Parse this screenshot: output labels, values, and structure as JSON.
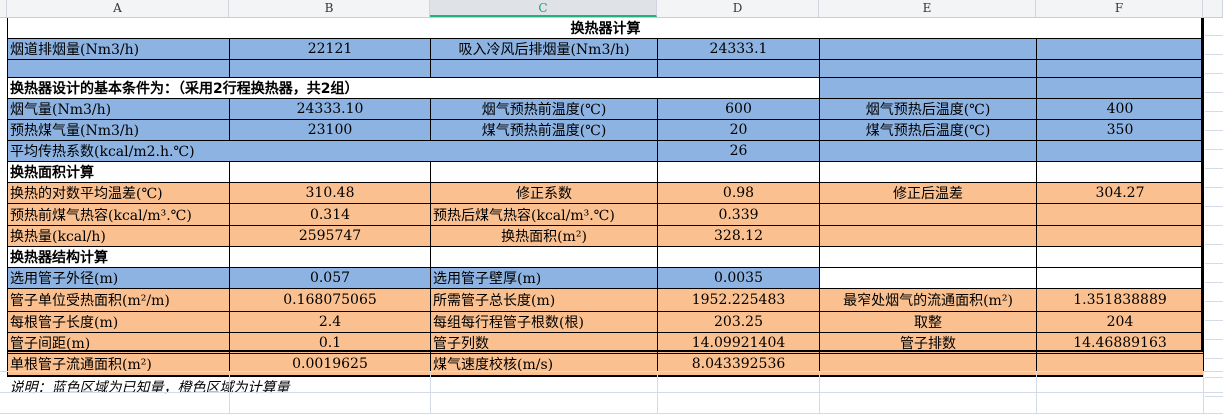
{
  "columns": [
    "A",
    "B",
    "C",
    "D",
    "E",
    "F"
  ],
  "selected_column": "C",
  "colors": {
    "blue": "#8db3e2",
    "orange": "#fac090"
  },
  "rows": [
    [
      {
        "t": "换热器计算",
        "span": 6,
        "fill": "white",
        "align": "c",
        "bold": true
      }
    ],
    [
      {
        "t": "烟道排烟量(Nm3/h)",
        "fill": "blue",
        "align": "l"
      },
      {
        "t": "22121",
        "fill": "blue"
      },
      {
        "t": "吸入冷风后排烟量(Nm3/h)",
        "fill": "blue"
      },
      {
        "t": "24333.1",
        "fill": "blue"
      },
      {
        "t": "",
        "fill": "blue"
      },
      {
        "t": "",
        "fill": "blue"
      }
    ],
    [
      {
        "t": "",
        "fill": "blue"
      },
      {
        "t": "",
        "fill": "blue"
      },
      {
        "t": "",
        "fill": "blue"
      },
      {
        "t": "",
        "fill": "blue"
      },
      {
        "t": "",
        "fill": "blue"
      },
      {
        "t": "",
        "fill": "blue"
      }
    ],
    [
      {
        "t": "换热器设计的基本条件为：（采用2行程换热器，共2组）",
        "span": 4,
        "fill": "white",
        "align": "l",
        "bold": true
      },
      {
        "t": "",
        "fill": "blue"
      },
      {
        "t": "",
        "fill": "blue"
      }
    ],
    [
      {
        "t": "烟气量(Nm3/h)",
        "fill": "blue",
        "align": "l"
      },
      {
        "t": "24333.10",
        "fill": "blue"
      },
      {
        "t": "烟气预热前温度(℃)",
        "fill": "blue"
      },
      {
        "t": "600",
        "fill": "blue"
      },
      {
        "t": "烟气预热后温度(℃)",
        "fill": "blue"
      },
      {
        "t": "400",
        "fill": "blue"
      }
    ],
    [
      {
        "t": "预热煤气量(Nm3/h)",
        "fill": "blue",
        "align": "l"
      },
      {
        "t": "23100",
        "fill": "blue"
      },
      {
        "t": "煤气预热前温度(℃)",
        "fill": "blue"
      },
      {
        "t": "20",
        "fill": "blue"
      },
      {
        "t": "煤气预热后温度(℃)",
        "fill": "blue"
      },
      {
        "t": "350",
        "fill": "blue"
      }
    ],
    [
      {
        "t": "平均传热系数(kcal/m2.h.℃)",
        "span": 3,
        "fill": "blue",
        "align": "l"
      },
      {
        "t": "26",
        "fill": "blue"
      },
      {
        "t": "",
        "fill": "blue"
      },
      {
        "t": "",
        "fill": "blue"
      }
    ],
    [
      {
        "t": "换热面积计算",
        "fill": "white",
        "align": "l",
        "bold": true
      },
      {
        "t": "",
        "fill": "white"
      },
      {
        "t": "",
        "fill": "white"
      },
      {
        "t": "",
        "fill": "white"
      },
      {
        "t": "",
        "fill": "white"
      },
      {
        "t": "",
        "fill": "white"
      }
    ],
    [
      {
        "t": "换热的对数平均温差(℃)",
        "fill": "orange",
        "align": "l"
      },
      {
        "t": "310.48",
        "fill": "orange"
      },
      {
        "t": "修正系数",
        "fill": "orange"
      },
      {
        "t": "0.98",
        "fill": "orange"
      },
      {
        "t": "修正后温差",
        "fill": "orange"
      },
      {
        "t": "304.27",
        "fill": "orange"
      }
    ],
    [
      {
        "t": "预热前煤气热容(kcal/m³.℃)",
        "fill": "orange",
        "align": "l"
      },
      {
        "t": "0.314",
        "fill": "orange"
      },
      {
        "t": "预热后煤气热容(kcal/m³.℃)",
        "fill": "orange",
        "align": "l"
      },
      {
        "t": "0.339",
        "fill": "orange"
      },
      {
        "t": "",
        "fill": "orange"
      },
      {
        "t": "",
        "fill": "orange"
      }
    ],
    [
      {
        "t": "换热量(kcal/h)",
        "fill": "orange",
        "align": "l"
      },
      {
        "t": "2595747",
        "fill": "orange"
      },
      {
        "t": "换热面积(m²)",
        "fill": "orange"
      },
      {
        "t": "328.12",
        "fill": "orange"
      },
      {
        "t": "",
        "fill": "orange"
      },
      {
        "t": "",
        "fill": "orange"
      }
    ],
    [
      {
        "t": "换热器结构计算",
        "fill": "white",
        "align": "l",
        "bold": true
      },
      {
        "t": "",
        "fill": "white"
      },
      {
        "t": "",
        "fill": "white"
      },
      {
        "t": "",
        "fill": "white"
      },
      {
        "t": "",
        "fill": "white"
      },
      {
        "t": "",
        "fill": "white"
      }
    ],
    [
      {
        "t": "选用管子外径(m)",
        "fill": "blue",
        "align": "l"
      },
      {
        "t": "0.057",
        "fill": "blue"
      },
      {
        "t": "选用管子壁厚(m)",
        "fill": "blue",
        "align": "l"
      },
      {
        "t": "0.0035",
        "fill": "blue"
      },
      {
        "t": "",
        "fill": "white"
      },
      {
        "t": "",
        "fill": "white"
      }
    ],
    [
      {
        "t": "管子单位受热面积(m²/m)",
        "fill": "orange",
        "align": "l"
      },
      {
        "t": "0.168075065",
        "fill": "orange"
      },
      {
        "t": "所需管子总长度(m)",
        "fill": "orange",
        "align": "l"
      },
      {
        "t": "1952.225483",
        "fill": "orange"
      },
      {
        "t": "最窄处烟气的流通面积(m²)",
        "fill": "orange"
      },
      {
        "t": "1.351838889",
        "fill": "orange"
      }
    ],
    [
      {
        "t": "每根管子长度(m)",
        "fill": "orange",
        "align": "l"
      },
      {
        "t": "2.4",
        "fill": "orange"
      },
      {
        "t": "每组每行程管子根数(根)",
        "fill": "orange",
        "align": "l"
      },
      {
        "t": "203.25",
        "fill": "orange"
      },
      {
        "t": "取整",
        "fill": "orange"
      },
      {
        "t": "204",
        "fill": "orange"
      }
    ],
    [
      {
        "t": "管子间距(m)",
        "fill": "orange",
        "align": "l"
      },
      {
        "t": "0.1",
        "fill": "orange"
      },
      {
        "t": "管子列数",
        "fill": "orange",
        "align": "l"
      },
      {
        "t": "14.09921404",
        "fill": "orange"
      },
      {
        "t": "管子排数",
        "fill": "orange"
      },
      {
        "t": "14.46889163",
        "fill": "orange"
      }
    ],
    [
      {
        "t": "单根管子流通面积(m²)",
        "fill": "orange",
        "align": "l"
      },
      {
        "t": "0.0019625",
        "fill": "orange"
      },
      {
        "t": "煤气速度校核(m/s)",
        "fill": "orange",
        "align": "l"
      },
      {
        "t": "8.043392536",
        "fill": "orange"
      },
      {
        "t": "",
        "fill": "orange"
      },
      {
        "t": "",
        "fill": "orange"
      }
    ]
  ],
  "note": "说明：蓝色区域为已知量，橙色区域为计算量"
}
